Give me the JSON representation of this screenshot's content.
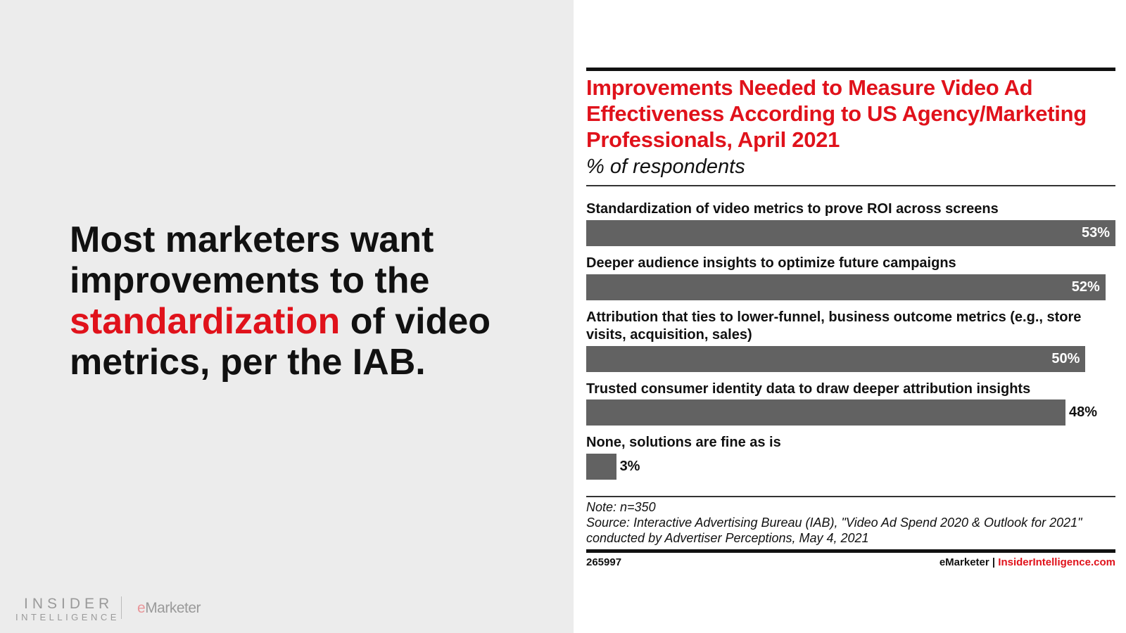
{
  "headline": {
    "before": "Most marketers want improvements to the ",
    "highlight": "standardization",
    "after": " of video metrics, per the IAB."
  },
  "logos": {
    "insider_line1": "INSIDER",
    "insider_line2": "INTELLIGENCE",
    "emarketer_e": "e",
    "emarketer_rest": "Marketer"
  },
  "colors": {
    "accent": "#e0121b",
    "bar": "#626262",
    "panel": "#ececec"
  },
  "chart_data": {
    "type": "bar",
    "orientation": "horizontal",
    "title": "Improvements Needed to Measure Video Ad Effectiveness According to US Agency/Marketing Professionals, April 2021",
    "subtitle": "% of respondents",
    "categories": [
      "Standardization of video metrics to prove ROI across screens",
      "Deeper audience insights to optimize future campaigns",
      "Attribution that ties to lower-funnel, business outcome metrics (e.g., store visits, acquisition, sales)",
      "Trusted consumer identity data to draw deeper attribution insights",
      "None, solutions are fine as is"
    ],
    "values": [
      53,
      52,
      50,
      48,
      3
    ],
    "value_labels": [
      "53%",
      "52%",
      "50%",
      "48%",
      "3%"
    ],
    "grid": false
  },
  "footer": {
    "note": "Note: n=350",
    "source": "Source: Interactive Advertising Bureau (IAB), \"Video Ad Spend 2020 & Outlook for 2021\" conducted by Advertiser Perceptions, May 4, 2021",
    "id": "265997",
    "brand": "eMarketer",
    "sep": "|",
    "site": "InsiderIntelligence.com"
  }
}
